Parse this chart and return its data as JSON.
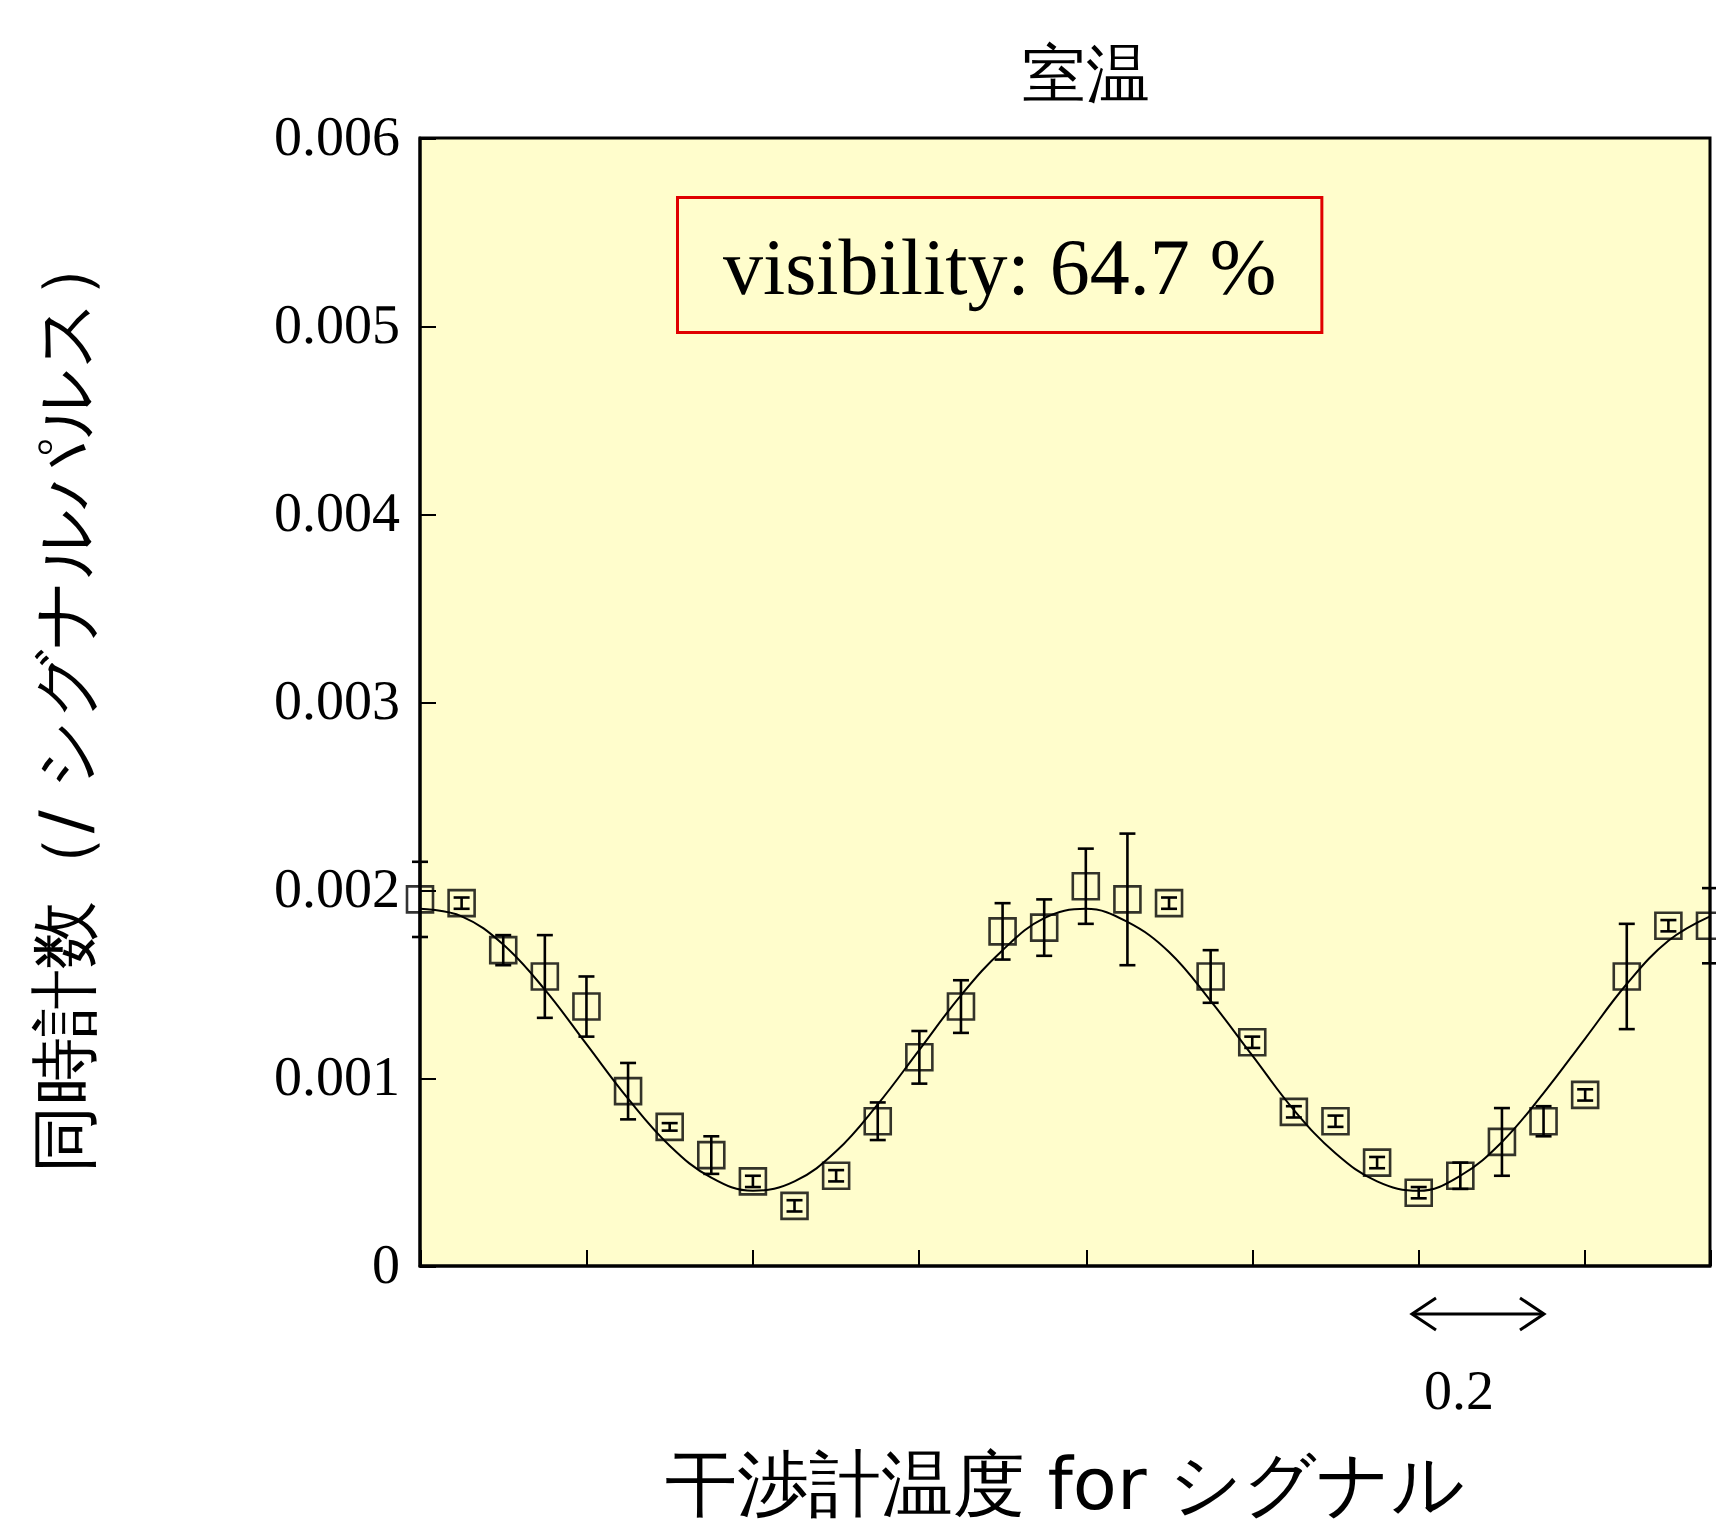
{
  "chart_data": {
    "type": "scatter",
    "title": "室温",
    "xlabel": "干渉計温度 for シグナル",
    "ylabel": "同時計数（/ シグナルパルス）",
    "categories": [
      null,
      null,
      null,
      null,
      null,
      null,
      null,
      null,
      null,
      null,
      null,
      null,
      null,
      null,
      null,
      null,
      null,
      null,
      null,
      null,
      null,
      null,
      null,
      null,
      null,
      null,
      null,
      null,
      null,
      null,
      null,
      null
    ],
    "series": [
      {
        "color": "#000000",
        "marker": "square",
        "values": [
          0.00195,
          0.00193,
          0.00168,
          0.00154,
          0.00138,
          0.00093,
          0.00074,
          0.00059,
          0.00045,
          0.00032,
          0.00048,
          0.00077,
          0.00111,
          0.00138,
          0.00178,
          0.0018,
          0.00202,
          0.00195,
          0.00193,
          0.00154,
          0.00119,
          0.00082,
          0.00077,
          0.00055,
          0.00039,
          0.00048,
          0.00066,
          0.00077,
          0.00091,
          0.00154,
          0.00181,
          0.00181
        ],
        "errors": [
          0.0002,
          3e-05,
          8e-05,
          0.00022,
          0.00016,
          0.00015,
          2e-05,
          0.0001,
          3e-05,
          3e-05,
          3e-05,
          0.0001,
          0.00014,
          0.00014,
          0.00015,
          0.00015,
          0.0002,
          0.00035,
          3e-05,
          0.00014,
          3e-05,
          3e-05,
          3e-05,
          3e-05,
          3e-05,
          7e-05,
          0.00018,
          8e-05,
          3e-05,
          0.00028,
          3e-05,
          0.0002
        ]
      },
      {
        "type": "line",
        "color": "#000000",
        "marker": "none",
        "line_style": "solid",
        "values": [
          0.0019,
          0.00186,
          0.00171,
          0.00147,
          0.00118,
          0.00089,
          0.00064,
          0.00047,
          0.0004,
          0.00045,
          0.00061,
          0.00086,
          0.00115,
          0.00144,
          0.00168,
          0.00185,
          0.0019,
          0.00183,
          0.00167,
          0.00141,
          0.00112,
          0.00083,
          0.0006,
          0.00045,
          0.0004,
          0.00048,
          0.00066,
          0.00092,
          0.00121,
          0.0015,
          0.00173,
          0.00186
        ]
      }
    ],
    "ylim": [
      0,
      0.006
    ],
    "yticks": [
      0,
      0.001,
      0.002,
      0.003,
      0.004,
      0.005,
      0.006
    ],
    "grid": false,
    "annotations": [
      "visibility: 64.7 %",
      "0.2"
    ]
  }
}
